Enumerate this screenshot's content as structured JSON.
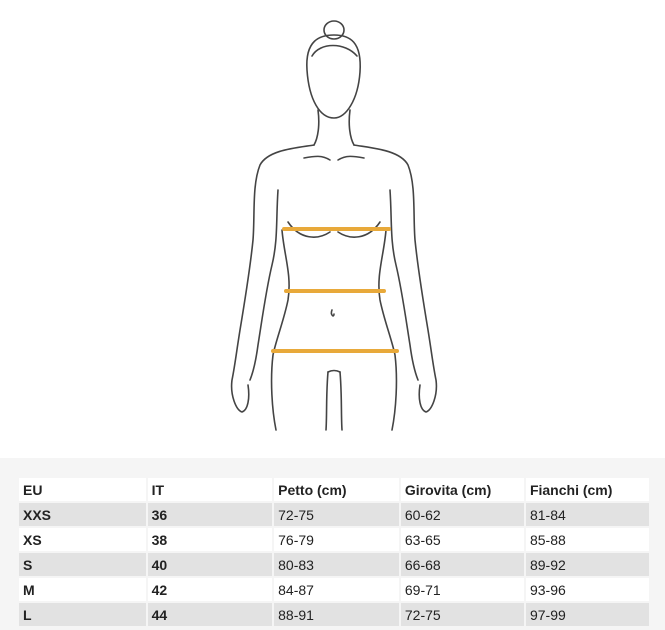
{
  "figure": {
    "measure_line_color": "#e8a93a",
    "measurements": [
      "chest",
      "waist",
      "hips"
    ]
  },
  "table": {
    "headers": [
      "EU",
      "IT",
      "Petto (cm)",
      "Girovita (cm)",
      "Fianchi (cm)"
    ],
    "rows": [
      [
        "XXS",
        "36",
        "72-75",
        "60-62",
        "81-84"
      ],
      [
        "XS",
        "38",
        "76-79",
        "63-65",
        "85-88"
      ],
      [
        "S",
        "40",
        "80-83",
        "66-68",
        "89-92"
      ],
      [
        "M",
        "42",
        "84-87",
        "69-71",
        "93-96"
      ],
      [
        "L",
        "44",
        "88-91",
        "72-75",
        "97-99"
      ]
    ]
  }
}
